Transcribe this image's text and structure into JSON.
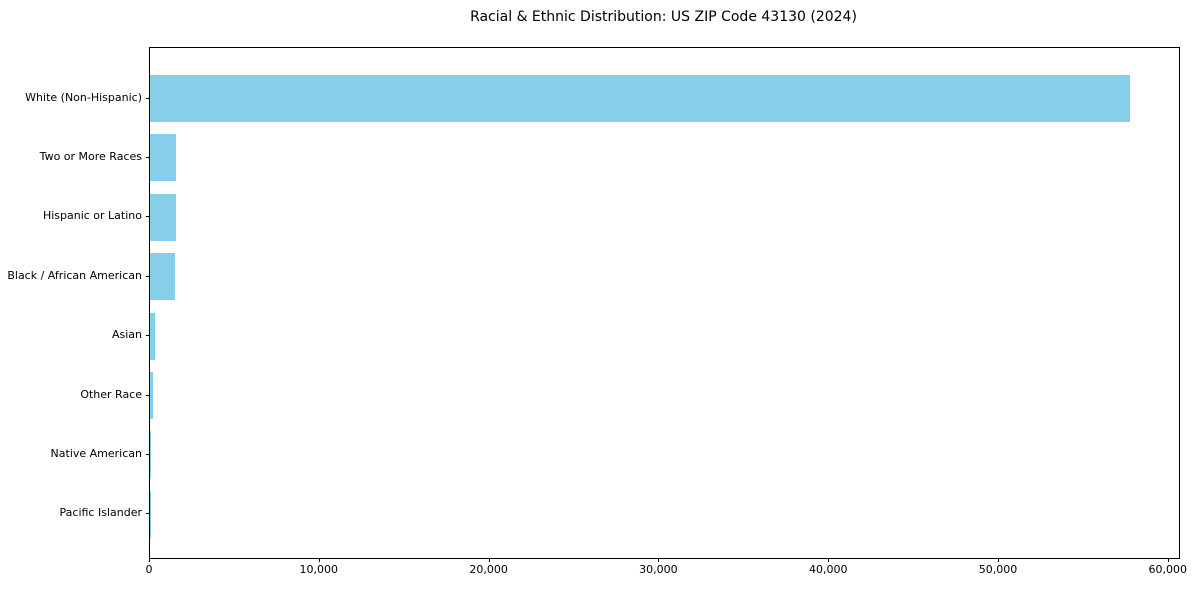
{
  "title": "Racial & Ethnic Distribution: US ZIP Code 43130 (2024)",
  "chart_data": {
    "type": "bar",
    "orientation": "horizontal",
    "title": "Racial & Ethnic Distribution: US ZIP Code 43130 (2024)",
    "xlabel": "",
    "ylabel": "",
    "categories": [
      "White (Non-Hispanic)",
      "Two or More Races",
      "Hispanic or Latino",
      "Black / African American",
      "Asian",
      "Other Race",
      "Native American",
      "Pacific Islander"
    ],
    "values": [
      57700,
      1550,
      1510,
      1480,
      280,
      170,
      50,
      12
    ],
    "xlim": [
      0,
      60600
    ],
    "x_ticks": [
      0,
      10000,
      20000,
      30000,
      40000,
      50000,
      60000
    ],
    "x_tick_labels": [
      "0",
      "10,000",
      "20,000",
      "30,000",
      "40,000",
      "50,000",
      "60,000"
    ],
    "bar_color": "#87CEEB",
    "grid": false,
    "legend": "none",
    "plot_background": "#ffffff"
  }
}
